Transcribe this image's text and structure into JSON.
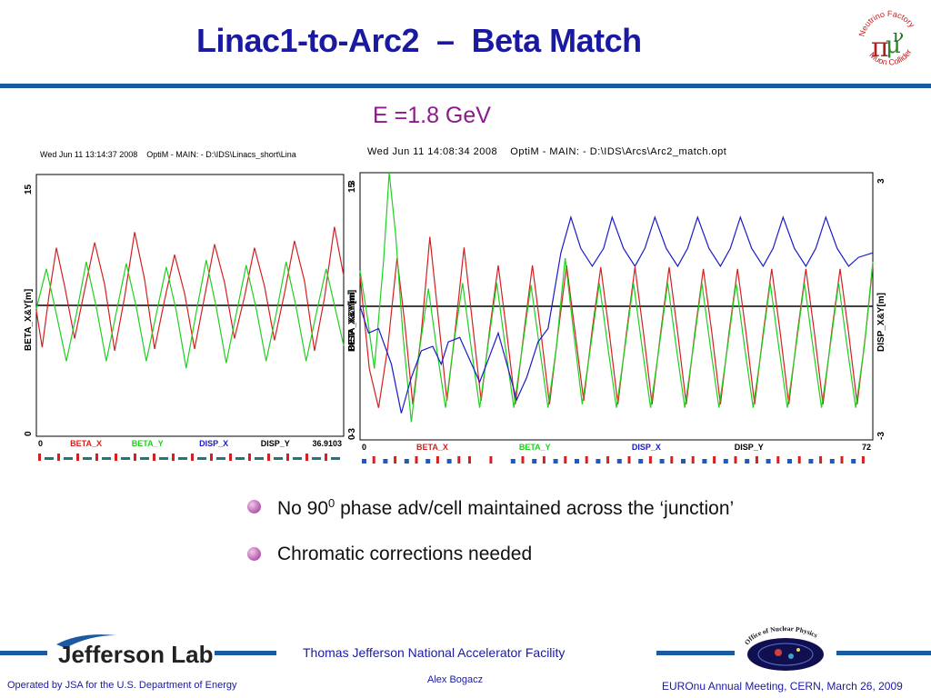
{
  "slide": {
    "title": "Linac1-to-Arc2  –  Beta Match",
    "energy_label": "E =1.8 GeV",
    "bullets": [
      {
        "text": "No 90",
        "sup": "0",
        "rest": " phase adv/cell maintained across the ‘junction’"
      },
      {
        "text": "Chromatic corrections needed",
        "sup": "",
        "rest": ""
      }
    ]
  },
  "logo_neutrino": {
    "top": "Neutrino Factory",
    "bottom": "Muon Collider"
  },
  "footer": {
    "facility": "Thomas Jefferson National Accelerator Facility",
    "author": "Alex Bogacz",
    "operated": "Operated by JSA for the U.S. Department of Energy",
    "meeting": "EUROnu Annual Meeting, CERN, March 26, 2009",
    "jlab_logo_text": "Jefferson Lab",
    "onp_logo_text": "Office of Nuclear Physics"
  },
  "colors": {
    "beta_x": "#d42020",
    "beta_y": "#20d020",
    "disp_x": "#1a1ac8",
    "disp_y": "#000000",
    "title": "#1a1aa0"
  },
  "chart_data": [
    {
      "type": "line",
      "header": "Wed Jun 11 13:14:37 2008    OptiM - MAIN: - D:\\IDS\\Linacs_short\\Lina",
      "xlim": [
        0,
        36.9103
      ],
      "x_tick_labels": [
        "0",
        "36.9103"
      ],
      "left_axis": {
        "label": "BETA_X&Y[m]",
        "ylim": [
          0,
          15
        ],
        "tick_labels": [
          "0",
          "15"
        ]
      },
      "right_axis": {
        "label": "DISP_X&Y[m]",
        "ylim": [
          -3,
          3
        ],
        "tick_labels": [
          "-3",
          "3"
        ]
      },
      "legend": [
        "BETA_X",
        "BETA_Y",
        "DISP_X",
        "DISP_Y"
      ],
      "series": [
        {
          "name": "BETA_X",
          "axis": "left",
          "points": [
            [
              0,
              7.2
            ],
            [
              0.7,
              5.1
            ],
            [
              1.5,
              8.0
            ],
            [
              2.4,
              10.8
            ],
            [
              3.4,
              8.6
            ],
            [
              4.6,
              5.6
            ],
            [
              5.8,
              8.4
            ],
            [
              7.0,
              11.1
            ],
            [
              8.2,
              8.7
            ],
            [
              9.4,
              4.9
            ],
            [
              10.6,
              8.0
            ],
            [
              11.8,
              11.7
            ],
            [
              13.0,
              9.0
            ],
            [
              14.2,
              5.0
            ],
            [
              15.4,
              7.8
            ],
            [
              16.6,
              10.4
            ],
            [
              17.8,
              8.2
            ],
            [
              19.0,
              5.0
            ],
            [
              20.2,
              8.0
            ],
            [
              21.4,
              11.0
            ],
            [
              22.6,
              8.8
            ],
            [
              23.8,
              5.6
            ],
            [
              25.0,
              8.0
            ],
            [
              26.2,
              10.8
            ],
            [
              27.4,
              8.6
            ],
            [
              28.6,
              5.5
            ],
            [
              29.8,
              8.2
            ],
            [
              31.0,
              11.2
            ],
            [
              32.2,
              8.9
            ],
            [
              33.4,
              4.9
            ],
            [
              34.6,
              7.9
            ],
            [
              35.8,
              12.0
            ],
            [
              36.9103,
              9.2
            ]
          ]
        },
        {
          "name": "BETA_Y",
          "axis": "left",
          "points": [
            [
              0,
              7.3
            ],
            [
              1.2,
              9.6
            ],
            [
              2.4,
              7.0
            ],
            [
              3.6,
              4.3
            ],
            [
              4.8,
              7.0
            ],
            [
              6.0,
              10.0
            ],
            [
              7.2,
              7.4
            ],
            [
              8.4,
              4.3
            ],
            [
              9.6,
              7.1
            ],
            [
              10.8,
              9.9
            ],
            [
              12.0,
              7.4
            ],
            [
              13.2,
              4.3
            ],
            [
              14.4,
              7.0
            ],
            [
              15.6,
              9.7
            ],
            [
              16.8,
              7.2
            ],
            [
              18.0,
              3.9
            ],
            [
              19.2,
              7.1
            ],
            [
              20.4,
              10.1
            ],
            [
              21.6,
              7.4
            ],
            [
              22.8,
              4.2
            ],
            [
              24.0,
              7.0
            ],
            [
              25.2,
              9.8
            ],
            [
              26.4,
              7.3
            ],
            [
              27.6,
              4.3
            ],
            [
              28.8,
              7.0
            ],
            [
              30.0,
              10.0
            ],
            [
              31.2,
              7.4
            ],
            [
              32.4,
              4.3
            ],
            [
              33.6,
              7.0
            ],
            [
              34.8,
              9.6
            ],
            [
              36.0,
              7.1
            ],
            [
              36.9103,
              5.2
            ]
          ]
        },
        {
          "name": "DISP_X",
          "axis": "right",
          "points": [
            [
              0,
              0
            ],
            [
              36.9103,
              0
            ]
          ]
        }
      ]
    },
    {
      "type": "line",
      "header": "Wed Jun 11 14:08:34 2008    OptiM - MAIN: - D:\\IDS\\Arcs\\Arc2_match.opt",
      "xlim": [
        0,
        72
      ],
      "x_tick_labels": [
        "0",
        "72"
      ],
      "left_axis": {
        "label": "BETA_X&Y[m]",
        "ylim": [
          0,
          15
        ],
        "tick_labels": [
          "0",
          "15"
        ]
      },
      "right_axis": {
        "label": "DISP_X&Y[m]",
        "ylim": [
          -3,
          3
        ],
        "tick_labels": [
          "-3",
          "3"
        ]
      },
      "legend": [
        "BETA_X",
        "BETA_Y",
        "DISP_X",
        "DISP_Y"
      ],
      "series": [
        {
          "name": "BETA_X",
          "axis": "left",
          "points": [
            [
              0,
              9.2
            ],
            [
              1.3,
              4.0
            ],
            [
              2.6,
              1.8
            ],
            [
              3.9,
              5.2
            ],
            [
              5.2,
              10.2
            ],
            [
              6.3,
              6.5
            ],
            [
              7.4,
              2.0
            ],
            [
              8.6,
              6.0
            ],
            [
              9.8,
              11.4
            ],
            [
              11.0,
              6.8
            ],
            [
              12.2,
              2.2
            ],
            [
              13.4,
              6.3
            ],
            [
              14.6,
              10.8
            ],
            [
              15.8,
              6.5
            ],
            [
              17.0,
              2.2
            ],
            [
              18.2,
              6.2
            ],
            [
              19.4,
              9.8
            ],
            [
              20.6,
              6.0
            ],
            [
              21.8,
              2.0
            ],
            [
              23.0,
              6.0
            ],
            [
              24.2,
              9.8
            ],
            [
              25.4,
              6.0
            ],
            [
              26.6,
              2.0
            ],
            [
              27.8,
              6.0
            ],
            [
              29.0,
              9.8
            ],
            [
              30.2,
              6.0
            ],
            [
              31.4,
              2.2
            ],
            [
              32.6,
              6.2
            ],
            [
              33.8,
              9.7
            ],
            [
              35.0,
              6.0
            ],
            [
              36.2,
              2.0
            ],
            [
              37.4,
              6.0
            ],
            [
              38.6,
              9.7
            ],
            [
              39.8,
              6.0
            ],
            [
              41.0,
              2.0
            ],
            [
              42.2,
              6.0
            ],
            [
              43.4,
              9.7
            ],
            [
              44.6,
              6.0
            ],
            [
              45.8,
              2.0
            ],
            [
              47.0,
              6.0
            ],
            [
              48.2,
              9.6
            ],
            [
              49.4,
              6.0
            ],
            [
              50.6,
              2.0
            ],
            [
              51.8,
              6.0
            ],
            [
              53.0,
              9.6
            ],
            [
              54.2,
              6.0
            ],
            [
              55.4,
              2.0
            ],
            [
              56.6,
              6.0
            ],
            [
              57.8,
              9.6
            ],
            [
              59.0,
              6.0
            ],
            [
              60.2,
              2.0
            ],
            [
              61.4,
              6.0
            ],
            [
              62.6,
              9.6
            ],
            [
              63.8,
              6.0
            ],
            [
              65.0,
              2.0
            ],
            [
              66.2,
              6.0
            ],
            [
              67.4,
              9.6
            ],
            [
              68.6,
              6.0
            ],
            [
              69.8,
              2.0
            ],
            [
              71.0,
              6.0
            ],
            [
              72,
              9.8
            ]
          ]
        },
        {
          "name": "BETA_Y",
          "axis": "left",
          "points": [
            [
              0,
              9.5
            ],
            [
              1.0,
              7.0
            ],
            [
              2.0,
              4.0
            ],
            [
              3.3,
              10.0
            ],
            [
              4.1,
              15.0
            ],
            [
              5.0,
              11.5
            ],
            [
              6.0,
              6.0
            ],
            [
              7.2,
              1.0
            ],
            [
              8.4,
              5.2
            ],
            [
              9.6,
              8.5
            ],
            [
              10.8,
              5.0
            ],
            [
              12.0,
              1.8
            ],
            [
              13.2,
              5.5
            ],
            [
              14.4,
              8.8
            ],
            [
              15.6,
              5.2
            ],
            [
              16.8,
              1.8
            ],
            [
              18.0,
              5.4
            ],
            [
              19.2,
              8.8
            ],
            [
              20.4,
              5.2
            ],
            [
              21.6,
              1.8
            ],
            [
              22.8,
              5.2
            ],
            [
              24.0,
              8.7
            ],
            [
              25.2,
              5.2
            ],
            [
              26.4,
              1.8
            ],
            [
              27.6,
              5.3
            ],
            [
              28.8,
              10.2
            ],
            [
              30.0,
              6.0
            ],
            [
              31.2,
              2.0
            ],
            [
              32.4,
              5.3
            ],
            [
              33.6,
              8.8
            ],
            [
              34.8,
              5.2
            ],
            [
              36.0,
              1.8
            ],
            [
              37.2,
              5.2
            ],
            [
              38.4,
              8.8
            ],
            [
              39.6,
              5.2
            ],
            [
              40.8,
              1.8
            ],
            [
              42.0,
              5.2
            ],
            [
              43.2,
              8.8
            ],
            [
              44.4,
              5.2
            ],
            [
              45.6,
              1.8
            ],
            [
              46.8,
              5.2
            ],
            [
              48.0,
              8.8
            ],
            [
              49.2,
              5.2
            ],
            [
              50.4,
              1.8
            ],
            [
              51.6,
              5.2
            ],
            [
              52.8,
              8.8
            ],
            [
              54.0,
              5.2
            ],
            [
              55.2,
              1.8
            ],
            [
              56.4,
              5.2
            ],
            [
              57.6,
              8.8
            ],
            [
              58.8,
              5.2
            ],
            [
              60.0,
              1.8
            ],
            [
              61.2,
              5.2
            ],
            [
              62.4,
              8.8
            ],
            [
              63.6,
              5.2
            ],
            [
              64.8,
              1.8
            ],
            [
              66.0,
              5.2
            ],
            [
              67.2,
              8.8
            ],
            [
              68.4,
              5.2
            ],
            [
              69.6,
              1.8
            ],
            [
              70.8,
              5.2
            ],
            [
              72,
              10.0
            ]
          ]
        },
        {
          "name": "DISP_X",
          "axis": "right",
          "points": [
            [
              0,
              0
            ],
            [
              1.2,
              -0.6
            ],
            [
              2.6,
              -0.5
            ],
            [
              4.4,
              -1.3
            ],
            [
              5.8,
              -2.4
            ],
            [
              7.2,
              -1.6
            ],
            [
              8.6,
              -1.0
            ],
            [
              10.2,
              -0.9
            ],
            [
              11.4,
              -1.3
            ],
            [
              12.4,
              -0.8
            ],
            [
              14.0,
              -0.7
            ],
            [
              15.4,
              -1.2
            ],
            [
              16.8,
              -1.7
            ],
            [
              18.0,
              -1.2
            ],
            [
              19.4,
              -0.6
            ],
            [
              20.8,
              -1.4
            ],
            [
              22.0,
              -2.1
            ],
            [
              23.4,
              -1.6
            ],
            [
              25.0,
              -0.8
            ],
            [
              26.4,
              -0.5
            ],
            [
              28.2,
              1.2
            ],
            [
              29.6,
              2.0
            ],
            [
              31.0,
              1.3
            ],
            [
              32.6,
              0.9
            ],
            [
              34.2,
              1.3
            ],
            [
              35.4,
              2.0
            ],
            [
              37.0,
              1.3
            ],
            [
              38.6,
              0.9
            ],
            [
              40.0,
              1.3
            ],
            [
              41.4,
              2.0
            ],
            [
              43.0,
              1.3
            ],
            [
              44.6,
              0.9
            ],
            [
              46.0,
              1.3
            ],
            [
              47.4,
              2.0
            ],
            [
              49.0,
              1.3
            ],
            [
              50.6,
              0.9
            ],
            [
              52.0,
              1.3
            ],
            [
              53.4,
              2.0
            ],
            [
              55.0,
              1.3
            ],
            [
              56.6,
              0.9
            ],
            [
              58.0,
              1.3
            ],
            [
              59.4,
              2.0
            ],
            [
              61.0,
              1.3
            ],
            [
              62.6,
              0.9
            ],
            [
              64.0,
              1.3
            ],
            [
              65.4,
              2.0
            ],
            [
              67.0,
              1.3
            ],
            [
              68.6,
              0.9
            ],
            [
              70.0,
              1.1
            ],
            [
              72,
              1.2
            ]
          ]
        }
      ]
    }
  ]
}
